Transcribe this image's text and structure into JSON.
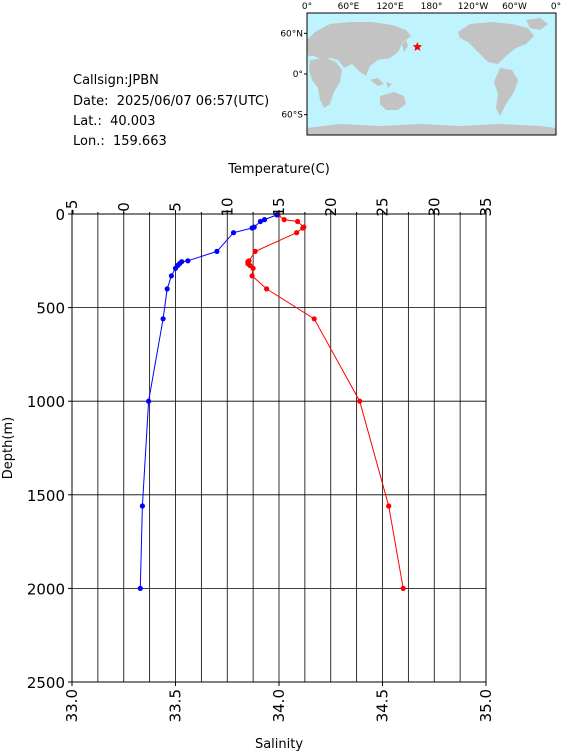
{
  "info": {
    "callsign": "Callsign:JPBN",
    "date": "Date:  2025/06/07 06:57(UTC)",
    "lat": "Lat.:  40.003",
    "lon": "Lon.:  159.663"
  },
  "map": {
    "lon_ticks": [
      "0°",
      "60°E",
      "120°E",
      "180°",
      "120°W",
      "60°W",
      "0°"
    ],
    "lat_ticks": [
      "60°N",
      "0°",
      "60°S"
    ],
    "ocean_color": "#bff4ff",
    "land_color": "#c3c3c3",
    "marker_color": "#ff0000",
    "marker_lon": 159.663,
    "marker_lat": 40.003
  },
  "chart_data": {
    "type": "line",
    "title": "",
    "ylabel": "Depth(m)",
    "ylim": [
      0,
      2500
    ],
    "y_inverted": true,
    "y_ticks": [
      0,
      500,
      1000,
      1500,
      2000,
      2500
    ],
    "top_axis": {
      "label": "Temperature(C)",
      "range": [
        -5,
        35
      ],
      "ticks": [
        "-5",
        "0",
        "5",
        "10",
        "15",
        "20",
        "25",
        "30",
        "35"
      ]
    },
    "bottom_axis": {
      "label": "Salinity",
      "range": [
        33.0,
        35.0
      ],
      "ticks": [
        "33.0",
        "33.5",
        "34.0",
        "34.5",
        "35.0"
      ]
    },
    "grid": true,
    "series": [
      {
        "color": "#ff0000",
        "axis": "top",
        "x": [
          14.9,
          15.5,
          16.8,
          17.4,
          17.3,
          16.7,
          12.7,
          12.1,
          12.0,
          12.0,
          12.2,
          12.5,
          12.4,
          13.8,
          18.4,
          22.8,
          25.6,
          27.0
        ],
        "y": [
          5,
          30,
          40,
          70,
          75,
          100,
          200,
          250,
          255,
          265,
          275,
          290,
          330,
          400,
          560,
          1000,
          1560,
          2000
        ]
      },
      {
        "color": "#0000ff",
        "axis": "bottom",
        "x": [
          33.99,
          33.93,
          33.91,
          33.88,
          33.87,
          33.78,
          33.7,
          33.56,
          33.53,
          33.52,
          33.51,
          33.5,
          33.48,
          33.46,
          33.44,
          33.37,
          33.34,
          33.33
        ],
        "y": [
          5,
          30,
          40,
          70,
          75,
          100,
          200,
          250,
          255,
          265,
          275,
          290,
          330,
          400,
          560,
          1000,
          1560,
          2000
        ]
      }
    ]
  }
}
